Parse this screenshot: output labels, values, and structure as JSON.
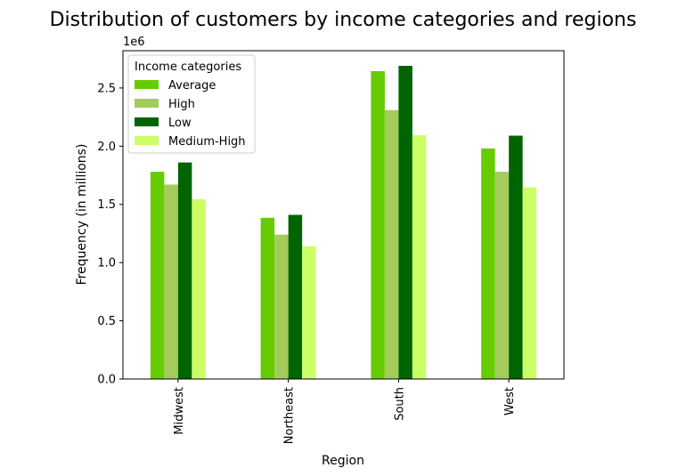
{
  "chart_data": {
    "type": "bar",
    "title": "Distribution of customers by income categories and regions",
    "xlabel": "Region",
    "ylabel": "Frequency (in millions)",
    "y_offset_label": "1e6",
    "categories": [
      "Midwest",
      "Northeast",
      "South",
      "West"
    ],
    "series": [
      {
        "name": "Average",
        "color": "#66cc00",
        "values": [
          1780000,
          1385000,
          2645000,
          1980000
        ]
      },
      {
        "name": "High",
        "color": "#a3cc5a",
        "values": [
          1670000,
          1240000,
          2310000,
          1780000
        ]
      },
      {
        "name": "Low",
        "color": "#006400",
        "values": [
          1860000,
          1410000,
          2690000,
          2090000
        ]
      },
      {
        "name": "Medium-High",
        "color": "#ccff66",
        "values": [
          1545000,
          1140000,
          2095000,
          1645000
        ]
      }
    ],
    "ylim": [
      0,
      2820000
    ],
    "y_ticks": [
      0,
      500000,
      1000000,
      1500000,
      2000000,
      2500000
    ],
    "y_tick_labels": [
      "0.0",
      "0.5",
      "1.0",
      "1.5",
      "2.0",
      "2.5"
    ],
    "legend": {
      "title": "Income categories",
      "position": "top-left"
    },
    "grid": false
  }
}
